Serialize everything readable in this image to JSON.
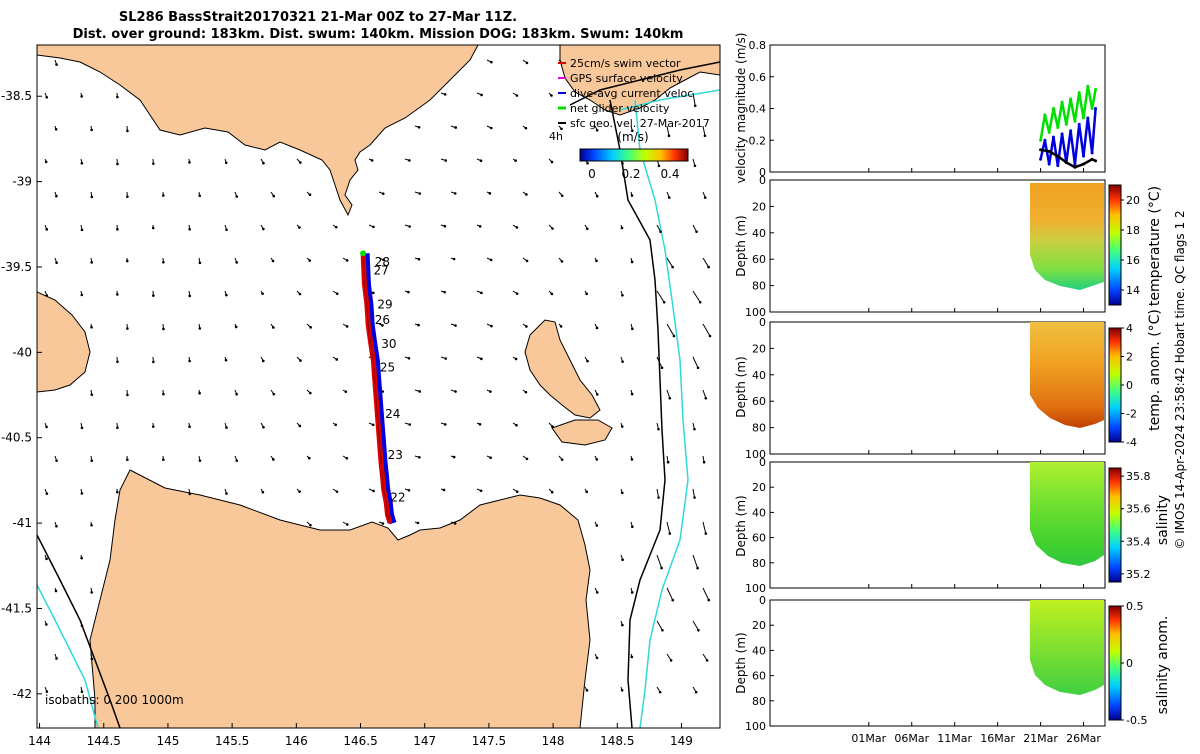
{
  "title": {
    "line1": "SL286 BassStrait20170321 21-Mar 00Z to 27-Mar 11Z.",
    "line2": "Dist. over ground: 183km. Dist. swum: 140km. Mission DOG: 183km. Swum: 140km"
  },
  "map": {
    "lon_ticks": [
      "144",
      "144.5",
      "145",
      "145.5",
      "146",
      "146.5",
      "147",
      "147.5",
      "148",
      "148.5",
      "149"
    ],
    "lat_ticks": [
      "-38.5",
      "-39",
      "-39.5",
      "-40",
      "-40.5",
      "-41",
      "-41.5",
      "-42"
    ],
    "lon_range": [
      143.98,
      149.3
    ],
    "lat_range": [
      -42.2,
      -38.2
    ],
    "legend": [
      {
        "label": "25cm/s swim vector",
        "color": "#e00000"
      },
      {
        "label": "GPS surface velocity",
        "color": "#e000e0"
      },
      {
        "label": "dive-avg current veloc",
        "color": "#0000e0"
      },
      {
        "label": "net glider velocity",
        "color": "#00e000"
      },
      {
        "label": "sfc geo. vel. 27-Mar-2017",
        "color": "#000000"
      }
    ],
    "colorbar": {
      "label": "(m/s)",
      "ticks": [
        "0",
        "0.2",
        "0.4"
      ],
      "range": [
        0,
        0.5
      ]
    },
    "vector_scale_label": "4h",
    "isobath_label": "isobaths: 0   200  1000m",
    "track_lon": [
      146.52,
      146.53,
      146.55,
      146.56,
      146.58,
      146.6,
      146.61,
      146.62,
      146.63,
      146.64,
      146.65,
      146.66,
      146.67,
      146.68,
      146.7,
      146.71,
      146.73
    ],
    "track_lat": [
      -39.42,
      -39.6,
      -39.72,
      -39.84,
      -39.95,
      -40.05,
      -40.15,
      -40.25,
      -40.35,
      -40.45,
      -40.55,
      -40.65,
      -40.72,
      -40.8,
      -40.88,
      -40.95,
      -41.0
    ],
    "day_labels": [
      {
        "text": "28",
        "lon": 146.58,
        "lat": -39.47
      },
      {
        "text": "27",
        "lon": 146.57,
        "lat": -39.52
      },
      {
        "text": "29",
        "lon": 146.6,
        "lat": -39.72
      },
      {
        "text": "26",
        "lon": 146.58,
        "lat": -39.81
      },
      {
        "text": "30",
        "lon": 146.63,
        "lat": -39.95
      },
      {
        "text": "25",
        "lon": 146.62,
        "lat": -40.09
      },
      {
        "text": "24",
        "lon": 146.66,
        "lat": -40.36
      },
      {
        "text": "23",
        "lon": 146.68,
        "lat": -40.6
      },
      {
        "text": "22",
        "lon": 146.7,
        "lat": -40.85
      }
    ]
  },
  "chart_data": [
    {
      "type": "line",
      "title": "",
      "xlabel": "",
      "ylabel": "velocity magnitude (m/s)",
      "ylim": [
        0,
        0.8
      ],
      "yticks": [
        "0",
        "0.2",
        "0.4",
        "0.6",
        "0.8"
      ],
      "series": [
        {
          "name": "net glider velocity",
          "color": "#00e000",
          "x": [
            21,
            21.5,
            22,
            22.5,
            23,
            23.5,
            24,
            24.5,
            25,
            25.5,
            26,
            26.5,
            27,
            27.4
          ],
          "values": [
            0.2,
            0.36,
            0.25,
            0.4,
            0.28,
            0.44,
            0.3,
            0.46,
            0.32,
            0.5,
            0.34,
            0.54,
            0.4,
            0.52
          ]
        },
        {
          "name": "dive-avg current veloc",
          "color": "#0000e0",
          "x": [
            21,
            21.5,
            22,
            22.5,
            23,
            23.5,
            24,
            24.5,
            25,
            25.5,
            26,
            26.5,
            27,
            27.4
          ],
          "values": [
            0.08,
            0.2,
            0.05,
            0.22,
            0.04,
            0.24,
            0.06,
            0.26,
            0.05,
            0.3,
            0.1,
            0.34,
            0.12,
            0.4
          ]
        },
        {
          "name": "sfc geo. vel.",
          "color": "#000000",
          "x": [
            21,
            22,
            23,
            24,
            25,
            26,
            27,
            27.4
          ],
          "values": [
            0.14,
            0.13,
            0.1,
            0.06,
            0.03,
            0.05,
            0.08,
            0.07
          ]
        }
      ]
    },
    {
      "type": "heatmap",
      "variable": "temperature (°C)",
      "ylabel": "Depth (m)",
      "colorbar_ticks": [
        "14",
        "16",
        "18",
        "20"
      ],
      "clim": [
        13,
        21
      ],
      "yticks": [
        "0",
        "20",
        "40",
        "60",
        "80",
        "100"
      ]
    },
    {
      "type": "heatmap",
      "variable": "temp. anom. (°C)",
      "ylabel": "Depth (m)",
      "colorbar_ticks": [
        "-4",
        "-2",
        "0",
        "2",
        "4"
      ],
      "clim": [
        -4,
        4
      ],
      "yticks": [
        "0",
        "20",
        "40",
        "60",
        "80",
        "100"
      ]
    },
    {
      "type": "heatmap",
      "variable": "salinity",
      "ylabel": "Depth (m)",
      "colorbar_ticks": [
        "35.2",
        "35.4",
        "35.6",
        "35.8"
      ],
      "clim": [
        35.15,
        35.85
      ],
      "yticks": [
        "0",
        "20",
        "40",
        "60",
        "80",
        "100"
      ]
    },
    {
      "type": "heatmap",
      "variable": "salinity anom.",
      "ylabel": "Depth (m)",
      "colorbar_ticks": [
        "-0.5",
        "0",
        "0.5"
      ],
      "clim": [
        -0.5,
        0.5
      ],
      "yticks": [
        "0",
        "20",
        "40",
        "60",
        "80",
        "100"
      ]
    }
  ],
  "time_axis": {
    "ticks": [
      "01Mar",
      "06Mar",
      "11Mar",
      "16Mar",
      "21Mar",
      "26Mar"
    ]
  },
  "footer": "© IMOS 14-Apr-2024 23:58:42 Hobart time. QC flags 1  2"
}
